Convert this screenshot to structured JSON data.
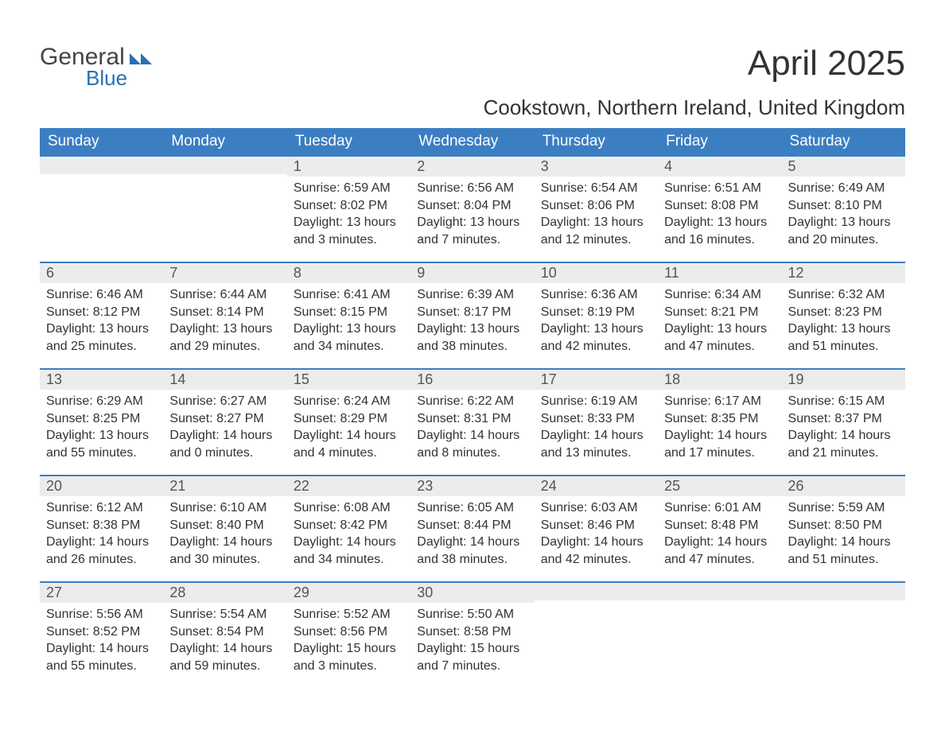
{
  "logo": {
    "main": "General",
    "sub": "Blue"
  },
  "title": "April 2025",
  "location": "Cookstown, Northern Ireland, United Kingdom",
  "colors": {
    "header_bg": "#3c7ec2",
    "header_text": "#ffffff",
    "daynum_bg": "#ececec",
    "row_border": "#3c7ec2",
    "text": "#333333",
    "logo_blue": "#2b6fb3"
  },
  "headers": [
    "Sunday",
    "Monday",
    "Tuesday",
    "Wednesday",
    "Thursday",
    "Friday",
    "Saturday"
  ],
  "weeks": [
    [
      {
        "day": "",
        "lines": []
      },
      {
        "day": "",
        "lines": []
      },
      {
        "day": "1",
        "lines": [
          "Sunrise: 6:59 AM",
          "Sunset: 8:02 PM",
          "Daylight: 13 hours and 3 minutes."
        ]
      },
      {
        "day": "2",
        "lines": [
          "Sunrise: 6:56 AM",
          "Sunset: 8:04 PM",
          "Daylight: 13 hours and 7 minutes."
        ]
      },
      {
        "day": "3",
        "lines": [
          "Sunrise: 6:54 AM",
          "Sunset: 8:06 PM",
          "Daylight: 13 hours and 12 minutes."
        ]
      },
      {
        "day": "4",
        "lines": [
          "Sunrise: 6:51 AM",
          "Sunset: 8:08 PM",
          "Daylight: 13 hours and 16 minutes."
        ]
      },
      {
        "day": "5",
        "lines": [
          "Sunrise: 6:49 AM",
          "Sunset: 8:10 PM",
          "Daylight: 13 hours and 20 minutes."
        ]
      }
    ],
    [
      {
        "day": "6",
        "lines": [
          "Sunrise: 6:46 AM",
          "Sunset: 8:12 PM",
          "Daylight: 13 hours and 25 minutes."
        ]
      },
      {
        "day": "7",
        "lines": [
          "Sunrise: 6:44 AM",
          "Sunset: 8:14 PM",
          "Daylight: 13 hours and 29 minutes."
        ]
      },
      {
        "day": "8",
        "lines": [
          "Sunrise: 6:41 AM",
          "Sunset: 8:15 PM",
          "Daylight: 13 hours and 34 minutes."
        ]
      },
      {
        "day": "9",
        "lines": [
          "Sunrise: 6:39 AM",
          "Sunset: 8:17 PM",
          "Daylight: 13 hours and 38 minutes."
        ]
      },
      {
        "day": "10",
        "lines": [
          "Sunrise: 6:36 AM",
          "Sunset: 8:19 PM",
          "Daylight: 13 hours and 42 minutes."
        ]
      },
      {
        "day": "11",
        "lines": [
          "Sunrise: 6:34 AM",
          "Sunset: 8:21 PM",
          "Daylight: 13 hours and 47 minutes."
        ]
      },
      {
        "day": "12",
        "lines": [
          "Sunrise: 6:32 AM",
          "Sunset: 8:23 PM",
          "Daylight: 13 hours and 51 minutes."
        ]
      }
    ],
    [
      {
        "day": "13",
        "lines": [
          "Sunrise: 6:29 AM",
          "Sunset: 8:25 PM",
          "Daylight: 13 hours and 55 minutes."
        ]
      },
      {
        "day": "14",
        "lines": [
          "Sunrise: 6:27 AM",
          "Sunset: 8:27 PM",
          "Daylight: 14 hours and 0 minutes."
        ]
      },
      {
        "day": "15",
        "lines": [
          "Sunrise: 6:24 AM",
          "Sunset: 8:29 PM",
          "Daylight: 14 hours and 4 minutes."
        ]
      },
      {
        "day": "16",
        "lines": [
          "Sunrise: 6:22 AM",
          "Sunset: 8:31 PM",
          "Daylight: 14 hours and 8 minutes."
        ]
      },
      {
        "day": "17",
        "lines": [
          "Sunrise: 6:19 AM",
          "Sunset: 8:33 PM",
          "Daylight: 14 hours and 13 minutes."
        ]
      },
      {
        "day": "18",
        "lines": [
          "Sunrise: 6:17 AM",
          "Sunset: 8:35 PM",
          "Daylight: 14 hours and 17 minutes."
        ]
      },
      {
        "day": "19",
        "lines": [
          "Sunrise: 6:15 AM",
          "Sunset: 8:37 PM",
          "Daylight: 14 hours and 21 minutes."
        ]
      }
    ],
    [
      {
        "day": "20",
        "lines": [
          "Sunrise: 6:12 AM",
          "Sunset: 8:38 PM",
          "Daylight: 14 hours and 26 minutes."
        ]
      },
      {
        "day": "21",
        "lines": [
          "Sunrise: 6:10 AM",
          "Sunset: 8:40 PM",
          "Daylight: 14 hours and 30 minutes."
        ]
      },
      {
        "day": "22",
        "lines": [
          "Sunrise: 6:08 AM",
          "Sunset: 8:42 PM",
          "Daylight: 14 hours and 34 minutes."
        ]
      },
      {
        "day": "23",
        "lines": [
          "Sunrise: 6:05 AM",
          "Sunset: 8:44 PM",
          "Daylight: 14 hours and 38 minutes."
        ]
      },
      {
        "day": "24",
        "lines": [
          "Sunrise: 6:03 AM",
          "Sunset: 8:46 PM",
          "Daylight: 14 hours and 42 minutes."
        ]
      },
      {
        "day": "25",
        "lines": [
          "Sunrise: 6:01 AM",
          "Sunset: 8:48 PM",
          "Daylight: 14 hours and 47 minutes."
        ]
      },
      {
        "day": "26",
        "lines": [
          "Sunrise: 5:59 AM",
          "Sunset: 8:50 PM",
          "Daylight: 14 hours and 51 minutes."
        ]
      }
    ],
    [
      {
        "day": "27",
        "lines": [
          "Sunrise: 5:56 AM",
          "Sunset: 8:52 PM",
          "Daylight: 14 hours and 55 minutes."
        ]
      },
      {
        "day": "28",
        "lines": [
          "Sunrise: 5:54 AM",
          "Sunset: 8:54 PM",
          "Daylight: 14 hours and 59 minutes."
        ]
      },
      {
        "day": "29",
        "lines": [
          "Sunrise: 5:52 AM",
          "Sunset: 8:56 PM",
          "Daylight: 15 hours and 3 minutes."
        ]
      },
      {
        "day": "30",
        "lines": [
          "Sunrise: 5:50 AM",
          "Sunset: 8:58 PM",
          "Daylight: 15 hours and 7 minutes."
        ]
      },
      {
        "day": "",
        "lines": []
      },
      {
        "day": "",
        "lines": []
      },
      {
        "day": "",
        "lines": []
      }
    ]
  ]
}
